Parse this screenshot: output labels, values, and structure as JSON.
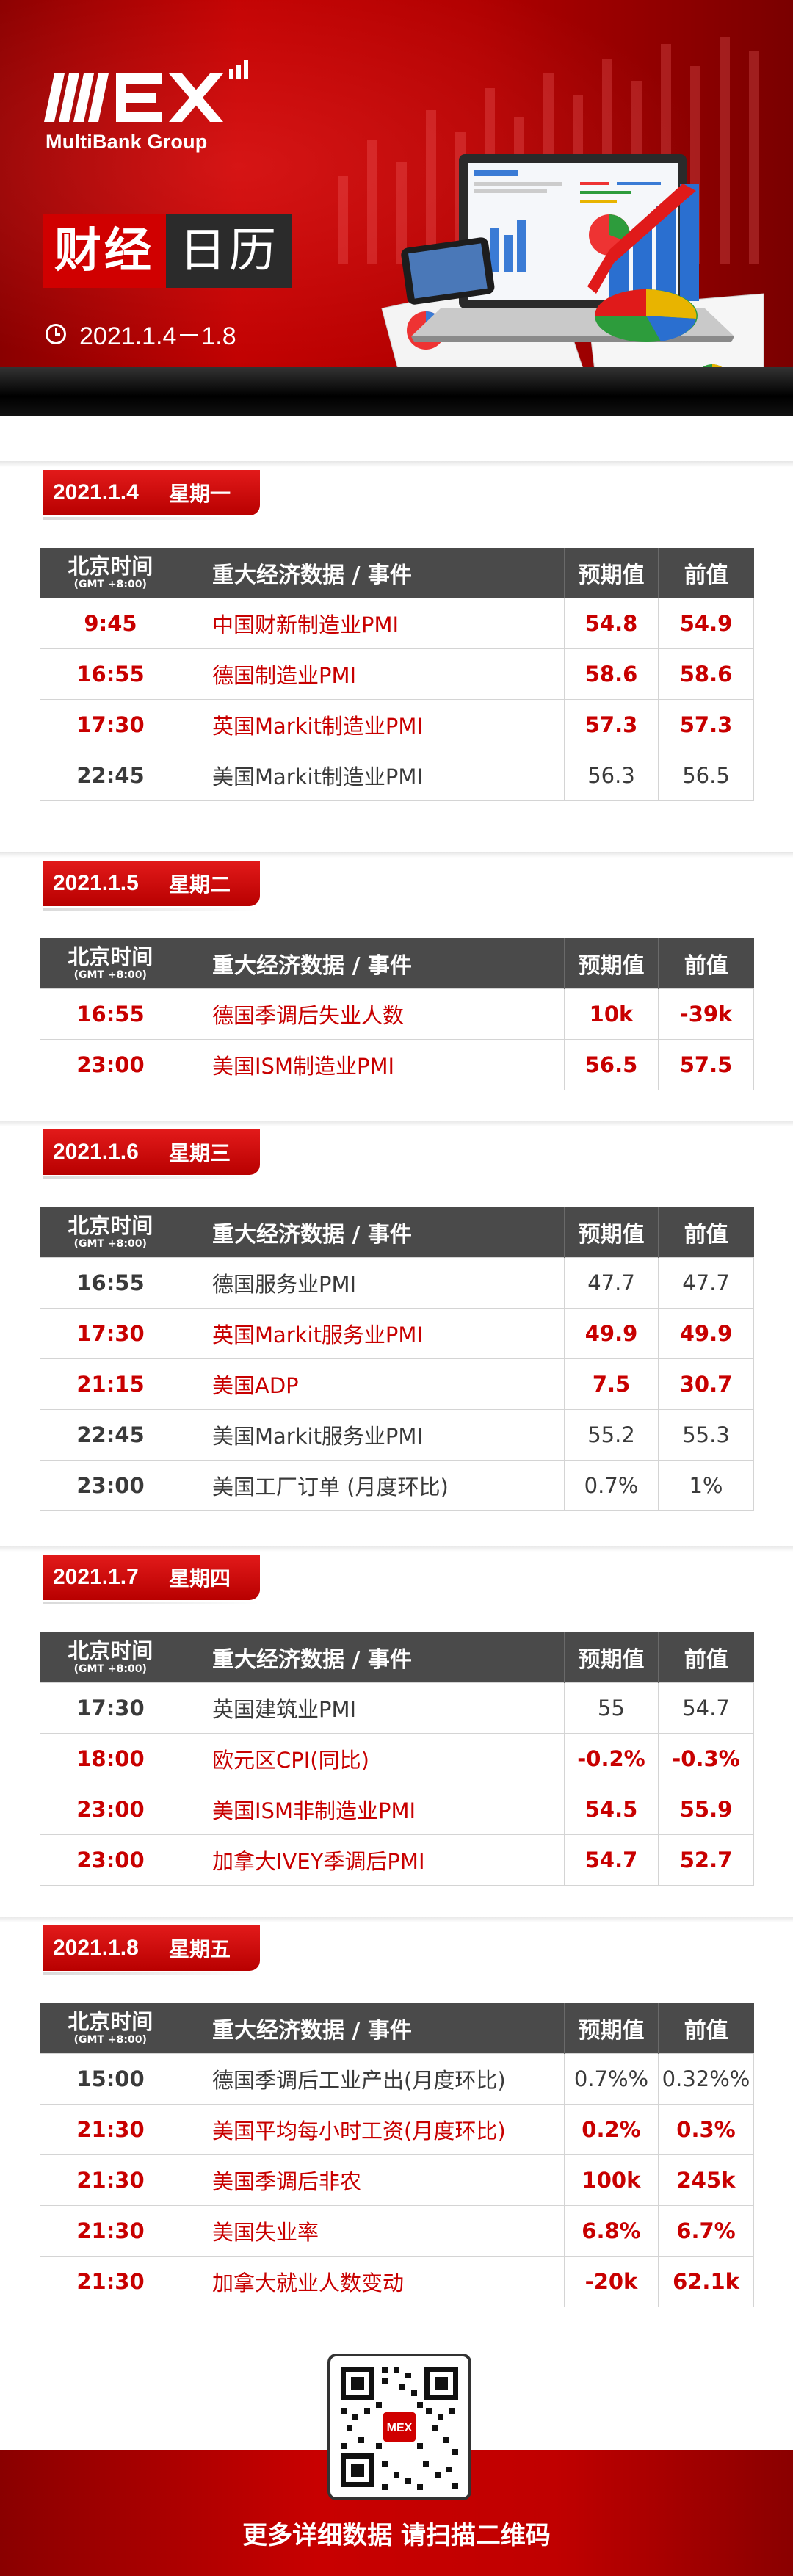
{
  "header": {
    "logo_text": "MEX",
    "logo_subtitle": "MultiBank Group",
    "title_part1": "财经",
    "title_part2": "日历",
    "date_range": "2021.1.4－1.8"
  },
  "table_headers": {
    "time": "北京时间",
    "time_sub": "(GMT +8:00)",
    "event": "重大经济数据 / 事件",
    "forecast": "预期值",
    "previous": "前值"
  },
  "days": [
    {
      "date": "2021.1.4",
      "weekday": "星期一",
      "rows": [
        {
          "time": "9:45",
          "event": "中国财新制造业PMI",
          "forecast": "54.8",
          "previous": "54.9",
          "highlight": true
        },
        {
          "time": "16:55",
          "event": "德国制造业PMI",
          "forecast": "58.6",
          "previous": "58.6",
          "highlight": true
        },
        {
          "time": "17:30",
          "event": "英国Markit制造业PMI",
          "forecast": "57.3",
          "previous": "57.3",
          "highlight": true
        },
        {
          "time": "22:45",
          "event": "美国Markit制造业PMI",
          "forecast": "56.3",
          "previous": "56.5",
          "highlight": false
        }
      ]
    },
    {
      "date": "2021.1.5",
      "weekday": "星期二",
      "rows": [
        {
          "time": "16:55",
          "event": "德国季调后失业人数",
          "forecast": "10k",
          "previous": "-39k",
          "highlight": true
        },
        {
          "time": "23:00",
          "event": "美国ISM制造业PMI",
          "forecast": "56.5",
          "previous": "57.5",
          "highlight": true
        }
      ]
    },
    {
      "date": "2021.1.6",
      "weekday": "星期三",
      "rows": [
        {
          "time": "16:55",
          "event": "德国服务业PMI",
          "forecast": "47.7",
          "previous": "47.7",
          "highlight": false
        },
        {
          "time": "17:30",
          "event": "英国Markit服务业PMI",
          "forecast": "49.9",
          "previous": "49.9",
          "highlight": true
        },
        {
          "time": "21:15",
          "event": "美国ADP",
          "forecast": "7.5",
          "previous": "30.7",
          "highlight": true
        },
        {
          "time": "22:45",
          "event": "美国Markit服务业PMI",
          "forecast": "55.2",
          "previous": "55.3",
          "highlight": false
        },
        {
          "time": "23:00",
          "event": "美国工厂订单 (月度环比)",
          "forecast": "0.7%",
          "previous": "1%",
          "highlight": false
        }
      ]
    },
    {
      "date": "2021.1.7",
      "weekday": "星期四",
      "rows": [
        {
          "time": "17:30",
          "event": "英国建筑业PMI",
          "forecast": "55",
          "previous": "54.7",
          "highlight": false
        },
        {
          "time": "18:00",
          "event": "欧元区CPI(同比)",
          "forecast": "-0.2%",
          "previous": "-0.3%",
          "highlight": true
        },
        {
          "time": "23:00",
          "event": "美国ISM非制造业PMI",
          "forecast": "54.5",
          "previous": "55.9",
          "highlight": true
        },
        {
          "time": "23:00",
          "event": "加拿大IVEY季调后PMI",
          "forecast": "54.7",
          "previous": "52.7",
          "highlight": true
        }
      ]
    },
    {
      "date": "2021.1.8",
      "weekday": "星期五",
      "rows": [
        {
          "time": "15:00",
          "event": "德国季调后工业产出(月度环比)",
          "forecast": "0.7%%",
          "previous": "0.32%%",
          "highlight": false
        },
        {
          "time": "21:30",
          "event": "美国平均每小时工资(月度环比)",
          "forecast": "0.2%",
          "previous": "0.3%",
          "highlight": true
        },
        {
          "time": "21:30",
          "event": "美国季调后非农",
          "forecast": "100k",
          "previous": "245k",
          "highlight": true
        },
        {
          "time": "21:30",
          "event": "美国失业率",
          "forecast": "6.8%",
          "previous": "6.7%",
          "highlight": true
        },
        {
          "time": "21:30",
          "event": "加拿大就业人数变动",
          "forecast": "-20k",
          "previous": "62.1k",
          "highlight": true
        }
      ]
    }
  ],
  "footer": {
    "qr_icon": "qr-code-icon",
    "text": "更多详细数据 请扫描二维码"
  },
  "colors": {
    "brand_red": "#c80000",
    "header_dark": "#4a4a4a"
  }
}
